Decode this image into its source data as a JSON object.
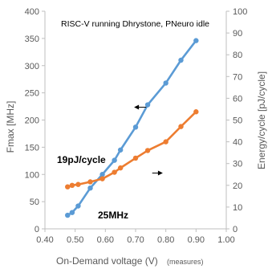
{
  "chart_data": {
    "type": "line",
    "title": "RISC-V running Dhrystone,  PNeuro idle",
    "xlabel": "On-Demand voltage (V)",
    "xlabel_note": "(measures)",
    "ylabel_left": "Fmax [MHz]",
    "ylabel_right": "Energy/cycle [pJ/cycle]",
    "x_range": [
      0.4,
      1.0
    ],
    "y_left_range": [
      0,
      400
    ],
    "y_right_range": [
      0,
      100
    ],
    "x_ticks": [
      "0.40",
      "0.50",
      "0.60",
      "0.70",
      "0.80",
      "0.90",
      "1.00"
    ],
    "y_left_ticks": [
      "0",
      "50",
      "100",
      "150",
      "200",
      "250",
      "300",
      "350",
      "400"
    ],
    "y_right_ticks": [
      "0",
      "10",
      "20",
      "30",
      "40",
      "50",
      "60",
      "70",
      "80",
      "90",
      "100"
    ],
    "grid": false,
    "series": [
      {
        "name": "Fmax",
        "axis": "left",
        "color": "#5b9bd5",
        "x": [
          0.475,
          0.49,
          0.51,
          0.55,
          0.59,
          0.63,
          0.65,
          0.7,
          0.74,
          0.8,
          0.85,
          0.9
        ],
        "y": [
          25,
          30,
          42,
          75,
          100,
          126,
          145,
          187,
          228,
          268,
          310,
          346
        ]
      },
      {
        "name": "Energy/cycle",
        "axis": "right",
        "color": "#ed7d31",
        "x": [
          0.475,
          0.49,
          0.51,
          0.55,
          0.59,
          0.63,
          0.65,
          0.7,
          0.74,
          0.8,
          0.85,
          0.9
        ],
        "y": [
          19.3,
          20.0,
          20.4,
          21.6,
          23.0,
          26.0,
          28.0,
          32.5,
          36.0,
          40.0,
          47.0,
          53.8
        ]
      }
    ],
    "annotations": [
      {
        "text": "19pJ/cycle",
        "series": "Energy/cycle"
      },
      {
        "text": "25MHz",
        "series": "Fmax"
      }
    ]
  }
}
